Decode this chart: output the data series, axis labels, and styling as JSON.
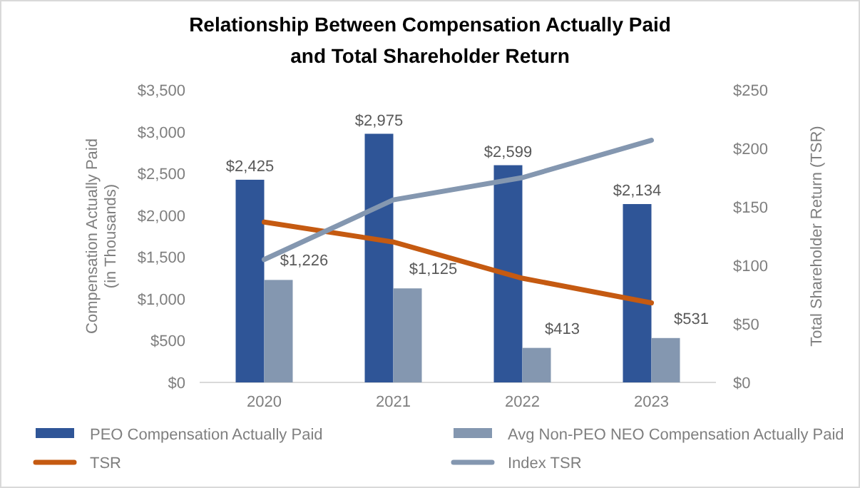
{
  "chart_data": {
    "type": "bar",
    "title": "Relationship Between Compensation Actually Paid\nand Total Shareholder Return",
    "ylabel": "Compensation Actually Paid\n(in Thousands)",
    "y2label": "Total Shareholder Return (TSR)",
    "categories": [
      "2020",
      "2021",
      "2022",
      "2023"
    ],
    "series": [
      {
        "name": "PEO Compensation Actually Paid",
        "color": "#2f5597",
        "values": [
          2425,
          2975,
          2599,
          2134
        ],
        "value_labels": [
          "$2,425",
          "$2,975",
          "$2,599",
          "$2,134"
        ]
      },
      {
        "name": "Avg Non-PEO NEO Compensation Actually Paid",
        "color": "#8497b0",
        "values": [
          1226,
          1125,
          413,
          531
        ],
        "value_labels": [
          "$1,226",
          "$1,125",
          "$413",
          "$531"
        ]
      },
      {
        "name": "TSR",
        "type": "line",
        "axis": "y2",
        "color": "#c55a11",
        "values": [
          137,
          120,
          89,
          68
        ]
      },
      {
        "name": "Index TSR",
        "type": "line",
        "axis": "y2",
        "color": "#8497b0",
        "values": [
          105,
          156,
          175,
          207
        ]
      }
    ],
    "ylim": [
      0,
      3500
    ],
    "yticks": [
      {
        "value": 0,
        "label": "$0"
      },
      {
        "value": 500,
        "label": "$500"
      },
      {
        "value": 1000,
        "label": "$1,000"
      },
      {
        "value": 1500,
        "label": "$1,500"
      },
      {
        "value": 2000,
        "label": "$2,000"
      },
      {
        "value": 2500,
        "label": "$2,500"
      },
      {
        "value": 3000,
        "label": "$3,000"
      },
      {
        "value": 3500,
        "label": "$3,500"
      }
    ],
    "y2lim": [
      0,
      250
    ],
    "y2ticks": [
      {
        "value": 0,
        "label": "$0"
      },
      {
        "value": 50,
        "label": "$50"
      },
      {
        "value": 100,
        "label": "$100"
      },
      {
        "value": 150,
        "label": "$150"
      },
      {
        "value": 200,
        "label": "$200"
      },
      {
        "value": 250,
        "label": "$250"
      }
    ],
    "grid": false,
    "legend": "bottom",
    "marker": "none",
    "line_style": "solid"
  }
}
